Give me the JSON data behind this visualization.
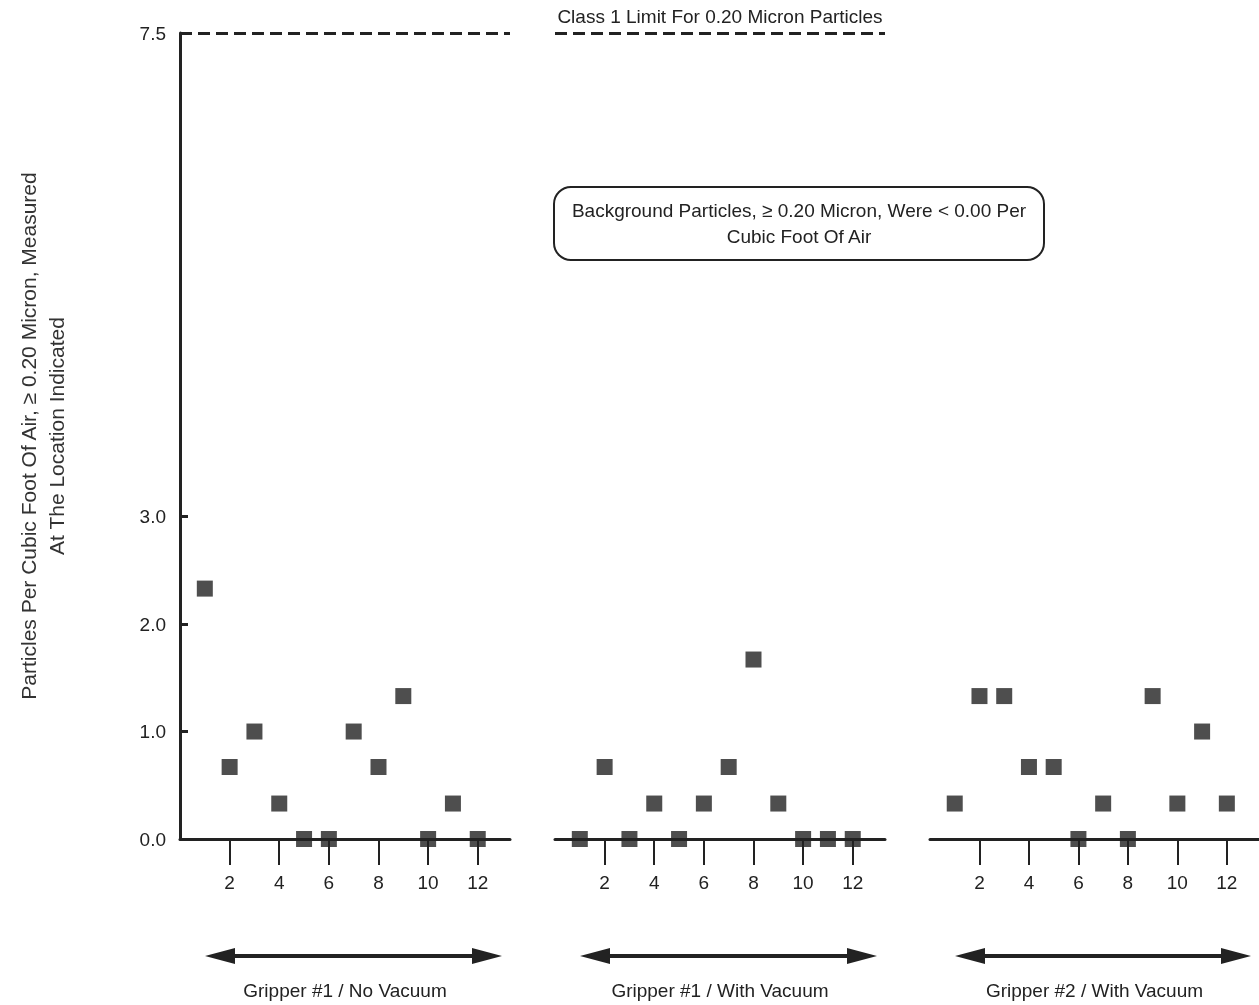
{
  "chart_data": [
    {
      "type": "scatter",
      "ylabel": "Particles Per Cubic Foot Of Air, ≥ 0.20 Micron, Measured\nAt The Location Indicated",
      "xlabel": "Gripper #1 / No Vacuum",
      "x": [
        1,
        2,
        3,
        4,
        5,
        6,
        7,
        8,
        9,
        10,
        11,
        12
      ],
      "series": [
        {
          "color": "#222222",
          "values": [
            2.33,
            0.67,
            1.0,
            0.33,
            0,
            0,
            1.0,
            0.67,
            1.33,
            0,
            0.33,
            0
          ]
        }
      ],
      "marker": "square",
      "xlim": [
        0,
        13.3
      ],
      "xticks": [
        2,
        4,
        6,
        8,
        10,
        12
      ],
      "ylim": [
        0,
        7.5
      ],
      "yticks": [
        {
          "value": 0,
          "label": "0.0"
        },
        {
          "value": 1,
          "label": "1.0"
        },
        {
          "value": 2,
          "label": "2.0"
        },
        {
          "value": 3,
          "label": "3.0"
        },
        {
          "value": 7.5,
          "label": "7.5"
        }
      ],
      "ref_lines": [
        {
          "axis": "y",
          "value": 7.5,
          "line_style": "dashed"
        }
      ]
    },
    {
      "type": "scatter",
      "xlabel": "Gripper #1 / With Vacuum",
      "x": [
        1,
        2,
        3,
        4,
        5,
        6,
        7,
        8,
        9,
        10,
        11,
        12
      ],
      "series": [
        {
          "color": "#222222",
          "values": [
            0,
            0.67,
            0,
            0.33,
            0,
            0.33,
            0.67,
            1.67,
            0.33,
            0,
            0,
            0
          ]
        }
      ],
      "marker": "square",
      "xlim": [
        0,
        13.3
      ],
      "xticks": [
        2,
        4,
        6,
        8,
        10,
        12
      ],
      "ylim": [
        0,
        7.5
      ],
      "tick_labels": "x",
      "ref_lines": [
        {
          "axis": "y",
          "value": 7.5,
          "label": "Class 1 Limit For 0.20 Micron Particles",
          "line_style": "dashed"
        }
      ],
      "annotations": [
        "Background Particles, ≥ 0.20 Micron, Were < 0.00 Per Cubic Foot Of Air"
      ]
    },
    {
      "type": "scatter",
      "xlabel": "Gripper #2 / With Vacuum",
      "x": [
        1,
        2,
        3,
        4,
        5,
        6,
        7,
        8,
        9,
        10,
        11,
        12
      ],
      "series": [
        {
          "color": "#222222",
          "values": [
            0.33,
            1.33,
            1.33,
            0.67,
            0.67,
            0,
            0.33,
            0,
            1.33,
            0.33,
            1.0,
            0.33
          ]
        }
      ],
      "marker": "square",
      "xlim": [
        0,
        13.3
      ],
      "xticks": [
        2,
        4,
        6,
        8,
        10,
        12
      ],
      "ylim": [
        0,
        7.5
      ],
      "tick_labels": "x"
    }
  ]
}
